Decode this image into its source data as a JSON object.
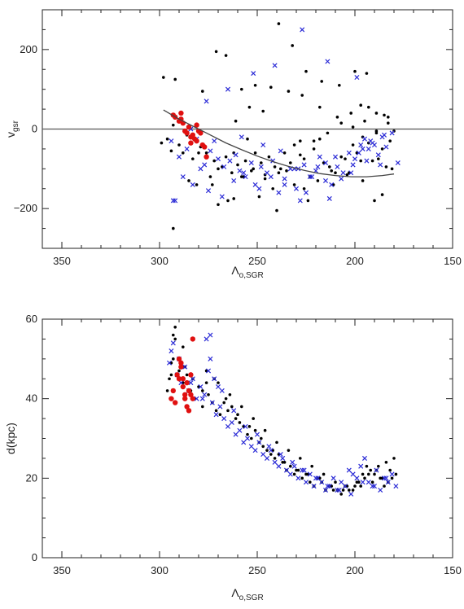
{
  "chart_data": [
    {
      "type": "scatter",
      "xlabel": "Λo,SGR",
      "xlabel_main": "Λ",
      "xlabel_sub": "o,SGR",
      "ylabel": "vgsr",
      "ylabel_main": "v",
      "ylabel_sub": "gsr",
      "xlim": [
        360,
        150
      ],
      "ylim": [
        -300,
        300
      ],
      "x_reversed": true,
      "xticks": [
        350,
        300,
        250,
        200,
        150
      ],
      "yticks": [
        -200,
        0,
        200
      ],
      "xtick_labels": [
        "350",
        "300",
        "250",
        "200",
        "150"
      ],
      "ytick_labels": [
        "−200",
        "0",
        "200"
      ],
      "hline": 0,
      "grid": false,
      "colors": {
        "black": "#000000",
        "blue": "#2a2ad6",
        "red": "#e01010",
        "line": "#444444"
      },
      "series": [
        {
          "marker": "dot-black",
          "x": [
            299,
            296,
            294,
            290,
            288,
            283,
            279,
            276,
            272,
            270,
            268,
            266,
            263,
            260,
            258,
            256,
            253,
            251,
            248,
            246,
            244,
            241,
            239,
            236,
            233,
            231,
            228,
            226,
            223,
            221,
            218,
            216,
            213,
            210,
            207,
            204,
            201,
            199,
            196,
            193,
            191,
            189,
            186,
            184,
            182,
            180,
            293,
            286,
            280,
            274,
            265,
            257,
            249,
            242,
            235,
            228,
            221,
            214,
            207,
            201,
            195,
            189,
            183,
            292,
            281,
            273,
            262,
            255,
            246,
            238,
            231,
            226,
            219,
            212,
            205,
            197,
            188,
            181,
            285,
            270,
            262,
            252,
            240,
            224,
            211,
            203,
            196,
            190,
            186,
            298,
            293,
            278,
            271,
            266,
            258,
            251,
            243,
            234,
            227,
            218,
            209,
            202,
            197,
            193,
            189,
            185,
            183,
            261,
            254,
            247,
            239,
            232,
            225,
            217,
            208,
            200,
            194
          ],
          "y": [
            -35,
            -25,
            -55,
            -40,
            -60,
            -75,
            -45,
            -60,
            -80,
            -100,
            -95,
            -70,
            -110,
            -90,
            -120,
            -80,
            -105,
            -60,
            -85,
            -125,
            -70,
            -95,
            -110,
            -60,
            -85,
            -40,
            -30,
            -75,
            -120,
            -50,
            -25,
            -85,
            -95,
            -110,
            -70,
            -115,
            -40,
            -60,
            -20,
            -35,
            -80,
            -10,
            -50,
            -95,
            -30,
            -5,
            10,
            -15,
            -60,
            -120,
            -180,
            -120,
            -170,
            -150,
            -105,
            -65,
            -30,
            -10,
            15,
            5,
            20,
            -5,
            15,
            125,
            -140,
            -140,
            -60,
            -25,
            -115,
            -100,
            -140,
            -150,
            -130,
            -105,
            -75,
            -80,
            -75,
            -100,
            -130,
            -190,
            -175,
            -100,
            -205,
            -180,
            -140,
            -110,
            -130,
            -180,
            -165,
            130,
            -250,
            95,
            195,
            185,
            100,
            110,
            105,
            95,
            85,
            55,
            30,
            40,
            60,
            55,
            40,
            35,
            30,
            20,
            55,
            45,
            265,
            210,
            145,
            120,
            110,
            145,
            140
          ]
        },
        {
          "marker": "cross-blue",
          "x": [
            294,
            290,
            286,
            281,
            277,
            274,
            270,
            267,
            264,
            261,
            259,
            256,
            253,
            251,
            248,
            245,
            242,
            239,
            236,
            233,
            230,
            228,
            226,
            223,
            220,
            218,
            215,
            212,
            209,
            206,
            203,
            200,
            197,
            195,
            193,
            191,
            188,
            186,
            184,
            181,
            178,
            292,
            288,
            283,
            279,
            275,
            268,
            262,
            257,
            249,
            243,
            236,
            231,
            225,
            219,
            213,
            207,
            202,
            198,
            194,
            190,
            187,
            284,
            272,
            258,
            247,
            238,
            229,
            222,
            215,
            210,
            201,
            196,
            192,
            185,
            293,
            276,
            265,
            252,
            241,
            227,
            214,
            199
          ],
          "y": [
            -30,
            -70,
            -50,
            -25,
            -90,
            -55,
            -75,
            -95,
            -80,
            -65,
            -105,
            -120,
            -85,
            -140,
            -95,
            -110,
            -80,
            -160,
            -125,
            -100,
            -150,
            -180,
            -90,
            -120,
            -105,
            -70,
            -130,
            -140,
            -95,
            -110,
            -60,
            -75,
            -40,
            -25,
            -50,
            -35,
            -65,
            -20,
            -45,
            -10,
            -85,
            -180,
            -120,
            -140,
            -100,
            -155,
            -170,
            -130,
            -110,
            -150,
            -120,
            -140,
            -100,
            -160,
            -95,
            -175,
            -125,
            -110,
            -60,
            -80,
            -40,
            -90,
            0,
            -30,
            -20,
            -40,
            -55,
            -100,
            -120,
            -85,
            -70,
            -90,
            -50,
            -30,
            -15,
            -180,
            70,
            100,
            140,
            160,
            250,
            170,
            130
          ]
        },
        {
          "marker": "dot-red",
          "x": [
            293,
            292,
            290,
            289,
            288,
            287,
            286,
            285,
            284,
            283,
            282,
            281,
            280,
            279,
            278,
            277,
            276,
            289,
            284,
            281
          ],
          "y": [
            35,
            30,
            20,
            25,
            15,
            -5,
            -10,
            5,
            -20,
            -15,
            -25,
            -30,
            -5,
            -10,
            -40,
            -45,
            -70,
            40,
            -35,
            10
          ],
          "size": "large"
        }
      ],
      "curve": {
        "x": [
          298,
          290,
          282,
          274,
          266,
          258,
          250,
          242,
          234,
          226,
          218,
          210,
          202,
          194,
          186,
          180
        ],
        "y": [
          48,
          25,
          5,
          -15,
          -35,
          -52,
          -68,
          -82,
          -94,
          -104,
          -112,
          -117,
          -120,
          -120,
          -117,
          -113
        ]
      }
    },
    {
      "type": "scatter",
      "xlabel": "Λo,SGR",
      "xlabel_main": "Λ",
      "xlabel_sub": "o,SGR",
      "ylabel": "d(kpc)",
      "xlim": [
        360,
        150
      ],
      "ylim": [
        0,
        60
      ],
      "x_reversed": true,
      "xticks": [
        350,
        300,
        250,
        200,
        150
      ],
      "yticks": [
        0,
        20,
        40,
        60
      ],
      "xtick_labels": [
        "350",
        "300",
        "250",
        "200",
        "150"
      ],
      "ytick_labels": [
        "0",
        "20",
        "40",
        "60"
      ],
      "grid": false,
      "colors": {
        "black": "#000000",
        "blue": "#2a2ad6",
        "red": "#e01010"
      },
      "series": [
        {
          "marker": "dot-black",
          "x": [
            296,
            295,
            294,
            293,
            292,
            290,
            288,
            286,
            284,
            282,
            280,
            278,
            276,
            275,
            273,
            271,
            269,
            267,
            265,
            263,
            261,
            259,
            257,
            255,
            253,
            251,
            249,
            247,
            245,
            243,
            241,
            239,
            237,
            235,
            233,
            231,
            229,
            227,
            225,
            223,
            221,
            219,
            217,
            215,
            213,
            211,
            209,
            207,
            205,
            203,
            201,
            199,
            197,
            195,
            193,
            191,
            189,
            187,
            185,
            183,
            181,
            179,
            294,
            292,
            287,
            283,
            278,
            272,
            266,
            260,
            254,
            248,
            242,
            236,
            230,
            224,
            218,
            212,
            206,
            200,
            196,
            192,
            188,
            184,
            180,
            293,
            288,
            276,
            270,
            264,
            258,
            252,
            246,
            240,
            234,
            228,
            222,
            216,
            210,
            204,
            198,
            194,
            190,
            186,
            182
          ],
          "y": [
            42,
            45,
            49,
            56,
            55,
            47,
            44,
            46,
            42,
            40,
            43,
            38,
            44,
            41,
            39,
            37,
            36,
            39,
            37,
            38,
            35,
            34,
            33,
            31,
            30,
            32,
            29,
            28,
            27,
            26,
            25,
            26,
            24,
            22,
            23,
            21,
            22,
            20,
            21,
            19,
            18,
            20,
            19,
            17,
            18,
            17,
            17,
            16,
            18,
            17,
            17,
            19,
            18,
            20,
            21,
            19,
            22,
            20,
            18,
            19,
            20,
            21,
            46,
            58,
            48,
            45,
            42,
            45,
            40,
            36,
            33,
            30,
            27,
            24,
            22,
            21,
            20,
            18,
            17,
            18,
            21,
            22,
            23,
            24,
            25,
            50,
            53,
            47,
            44,
            41,
            38,
            35,
            32,
            29,
            27,
            25,
            23,
            21,
            19,
            18,
            19,
            23,
            21,
            20,
            22
          ]
        },
        {
          "marker": "cross-blue",
          "x": [
            295,
            293,
            291,
            289,
            287,
            285,
            283,
            281,
            279,
            277,
            275,
            273,
            271,
            269,
            267,
            265,
            263,
            261,
            259,
            257,
            255,
            253,
            251,
            249,
            247,
            245,
            243,
            241,
            239,
            237,
            235,
            233,
            231,
            229,
            227,
            225,
            223,
            221,
            219,
            217,
            215,
            213,
            211,
            209,
            207,
            205,
            203,
            201,
            199,
            197,
            195,
            193,
            191,
            189,
            187,
            185,
            183,
            181,
            179,
            294,
            290,
            284,
            278,
            274,
            268,
            262,
            256,
            250,
            244,
            238,
            232,
            226,
            220,
            214,
            208,
            202,
            196,
            190,
            184,
            276,
            274,
            272,
            270
          ],
          "y": [
            49,
            54,
            46,
            44,
            48,
            42,
            45,
            40,
            43,
            41,
            47,
            39,
            36,
            38,
            35,
            33,
            34,
            31,
            32,
            29,
            30,
            28,
            27,
            29,
            26,
            25,
            27,
            24,
            23,
            25,
            22,
            21,
            23,
            20,
            22,
            19,
            21,
            18,
            20,
            19,
            17,
            18,
            20,
            17,
            19,
            18,
            22,
            21,
            20,
            23,
            25,
            19,
            18,
            22,
            17,
            20,
            19,
            21,
            18,
            52,
            50,
            44,
            40,
            56,
            42,
            37,
            33,
            31,
            28,
            26,
            24,
            22,
            20,
            18,
            17,
            16,
            19,
            18,
            20,
            55,
            50,
            45,
            43
          ]
        },
        {
          "marker": "dot-red",
          "x": [
            294,
            293,
            292,
            291,
            290,
            289,
            288,
            287,
            286,
            285,
            284,
            283,
            289,
            287,
            286,
            285,
            284,
            283,
            290,
            288
          ],
          "y": [
            40,
            42,
            39,
            46,
            45,
            48,
            43,
            41,
            44,
            42,
            46,
            55,
            49,
            40,
            38,
            37,
            41,
            40,
            50,
            45
          ],
          "size": "large"
        }
      ]
    }
  ]
}
